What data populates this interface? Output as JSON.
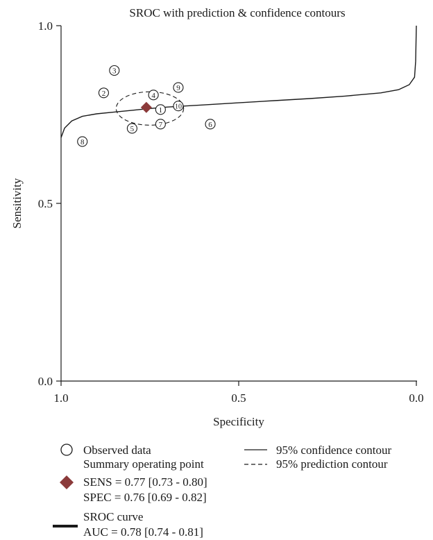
{
  "chart_data": {
    "type": "scatter",
    "title": "SROC with prediction  & confidence contours",
    "xlabel": "Specificity",
    "ylabel": "Sensitivity",
    "xlim": [
      1.0,
      0.0
    ],
    "ylim": [
      0.0,
      1.0
    ],
    "x_reversed": true,
    "x_ticks": [
      1.0,
      0.5,
      0.0
    ],
    "x_tick_labels": [
      "1.0",
      "0.5",
      "0.0"
    ],
    "y_ticks": [
      0.0,
      0.5,
      1.0
    ],
    "y_tick_labels": [
      "0.0",
      "0.5",
      "1.0"
    ],
    "grid": false,
    "series": [
      {
        "name": "Observed data",
        "kind": "scatter",
        "marker": "numbered-circle",
        "points": [
          {
            "label": "1",
            "specificity": 0.72,
            "sensitivity": 0.764
          },
          {
            "label": "2",
            "specificity": 0.88,
            "sensitivity": 0.811
          },
          {
            "label": "3",
            "specificity": 0.85,
            "sensitivity": 0.874
          },
          {
            "label": "4",
            "specificity": 0.74,
            "sensitivity": 0.805
          },
          {
            "label": "5",
            "specificity": 0.8,
            "sensitivity": 0.711
          },
          {
            "label": "6",
            "specificity": 0.58,
            "sensitivity": 0.723
          },
          {
            "label": "7",
            "specificity": 0.72,
            "sensitivity": 0.723
          },
          {
            "label": "8",
            "specificity": 0.94,
            "sensitivity": 0.674
          },
          {
            "label": "9",
            "specificity": 0.67,
            "sensitivity": 0.826
          },
          {
            "label": "10",
            "specificity": 0.67,
            "sensitivity": 0.774
          }
        ]
      },
      {
        "name": "Summary operating point",
        "kind": "point",
        "marker": "diamond",
        "color": "#8b3a3a",
        "specificity": 0.76,
        "sensitivity": 0.77,
        "sens_text": "SENS = 0.77 [0.73 - 0.80]",
        "spec_text": "SPEC = 0.76 [0.69 - 0.82]"
      },
      {
        "name": "SROC curve",
        "kind": "line",
        "auc_text": "AUC = 0.78 [0.74 - 0.81]",
        "points": [
          {
            "specificity": 1.0,
            "sensitivity": 0.685
          },
          {
            "specificity": 0.99,
            "sensitivity": 0.712
          },
          {
            "specificity": 0.97,
            "sensitivity": 0.732
          },
          {
            "specificity": 0.94,
            "sensitivity": 0.745
          },
          {
            "specificity": 0.9,
            "sensitivity": 0.752
          },
          {
            "specificity": 0.85,
            "sensitivity": 0.757
          },
          {
            "specificity": 0.8,
            "sensitivity": 0.762
          },
          {
            "specificity": 0.76,
            "sensitivity": 0.766
          },
          {
            "specificity": 0.7,
            "sensitivity": 0.771
          },
          {
            "specificity": 0.6,
            "sensitivity": 0.777
          },
          {
            "specificity": 0.5,
            "sensitivity": 0.783
          },
          {
            "specificity": 0.4,
            "sensitivity": 0.789
          },
          {
            "specificity": 0.3,
            "sensitivity": 0.795
          },
          {
            "specificity": 0.2,
            "sensitivity": 0.802
          },
          {
            "specificity": 0.1,
            "sensitivity": 0.811
          },
          {
            "specificity": 0.05,
            "sensitivity": 0.82
          },
          {
            "specificity": 0.02,
            "sensitivity": 0.834
          },
          {
            "specificity": 0.005,
            "sensitivity": 0.855
          },
          {
            "specificity": 0.002,
            "sensitivity": 0.9
          },
          {
            "specificity": 0.0,
            "sensitivity": 1.0
          }
        ]
      },
      {
        "name": "95% confidence contour",
        "kind": "line",
        "style": "solid"
      },
      {
        "name": "95% prediction contour",
        "kind": "ellipse",
        "style": "dashed",
        "center": {
          "specificity": 0.75,
          "sensitivity": 0.767
        },
        "half_width_specificity": 0.095,
        "half_height_sensitivity": 0.047
      }
    ],
    "legend": {
      "placement": "bottom",
      "observed": "Observed data",
      "summary": "Summary operating point",
      "sens": "SENS = 0.77 [0.73 - 0.80]",
      "spec": "SPEC = 0.76 [0.69 - 0.82]",
      "sroc": "SROC curve",
      "auc": "AUC = 0.78 [0.74 - 0.81]",
      "confidence": "95% confidence contour",
      "prediction": "95% prediction contour"
    }
  }
}
